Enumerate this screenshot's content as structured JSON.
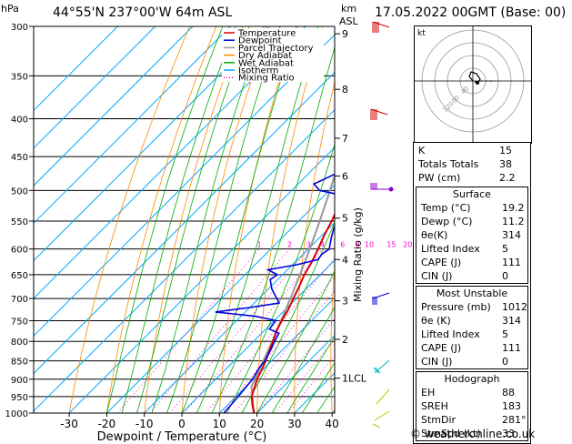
{
  "header": {
    "location": "44°55'N 237°00'W 64m ASL",
    "date": "17.05.2022 00GMT (Base: 00)",
    "left_unit": "hPa",
    "right_unit_top": "km",
    "right_unit_bottom": "ASL"
  },
  "chart_data": {
    "type": "line",
    "title": "44°55'N 237°00'W 64m ASL",
    "xlabel": "Dewpoint / Temperature (°C)",
    "ylabel": "hPa",
    "y2label": "Mixing Ratio (g/kg)",
    "xlim": [
      -35,
      40
    ],
    "ylim": [
      1000,
      300
    ],
    "y_scale": "log",
    "x_ticks": [
      -30,
      -20,
      -10,
      0,
      10,
      20,
      30,
      40
    ],
    "pressure_ticks": [
      300,
      350,
      400,
      450,
      500,
      550,
      600,
      650,
      700,
      750,
      800,
      850,
      900,
      950,
      1000
    ],
    "km_ticks": [
      {
        "label": "9",
        "p": 307
      },
      {
        "label": "8",
        "p": 365
      },
      {
        "label": "7",
        "p": 425
      },
      {
        "label": "6",
        "p": 478
      },
      {
        "label": "5",
        "p": 545
      },
      {
        "label": "4",
        "p": 620
      },
      {
        "label": "3",
        "p": 705
      },
      {
        "label": "2",
        "p": 795
      },
      {
        "label": "1LCL",
        "p": 897
      }
    ],
    "mixing_ratio_labels": [
      "1",
      "2",
      "3",
      "4",
      "6",
      "8",
      "10",
      "15",
      "20",
      "25"
    ],
    "mixing_ratio_values": [
      1,
      2,
      3,
      4,
      6,
      8,
      10,
      15,
      20,
      25
    ],
    "grid": true,
    "legend_position": "top-right",
    "legend": [
      {
        "name": "Temperature",
        "color": "#dd0000",
        "style": "solid"
      },
      {
        "name": "Dewpoint",
        "color": "#0000dd",
        "style": "solid"
      },
      {
        "name": "Parcel Trajectory",
        "color": "#999999",
        "style": "solid"
      },
      {
        "name": "Dry Adiabat",
        "color": "#ff8800",
        "style": "solid"
      },
      {
        "name": "Wet Adiabat",
        "color": "#00aa00",
        "style": "solid"
      },
      {
        "name": "Isotherm",
        "color": "#00aaff",
        "style": "solid"
      },
      {
        "name": "Mixing Ratio",
        "color": "#ff00cc",
        "style": "dotted"
      }
    ],
    "series": [
      {
        "name": "Temperature",
        "color": "#dd0000",
        "points": [
          [
            1000,
            19.2
          ],
          [
            975,
            16.6
          ],
          [
            950,
            14.2
          ],
          [
            925,
            12.6
          ],
          [
            900,
            11.0
          ],
          [
            875,
            9.8
          ],
          [
            850,
            8.4
          ],
          [
            825,
            6.8
          ],
          [
            800,
            5.2
          ],
          [
            775,
            3.4
          ],
          [
            750,
            2.0
          ],
          [
            725,
            0.8
          ],
          [
            700,
            -0.8
          ],
          [
            675,
            -2.4
          ],
          [
            650,
            -4.2
          ],
          [
            625,
            -5.6
          ],
          [
            600,
            -7.4
          ],
          [
            575,
            -9.4
          ],
          [
            550,
            -11.2
          ],
          [
            525,
            -13.4
          ],
          [
            500,
            -15.2
          ],
          [
            475,
            -18.4
          ],
          [
            450,
            -21.0
          ],
          [
            425,
            -24.0
          ],
          [
            400,
            -27.0
          ],
          [
            375,
            -30.4
          ],
          [
            350,
            -33.4
          ],
          [
            325,
            -37.6
          ],
          [
            300,
            -41.2
          ]
        ]
      },
      {
        "name": "Dewpoint",
        "color": "#0000dd",
        "points": [
          [
            1000,
            11.2
          ],
          [
            950,
            10.6
          ],
          [
            900,
            9.8
          ],
          [
            870,
            8.6
          ],
          [
            850,
            8.2
          ],
          [
            820,
            6.8
          ],
          [
            800,
            5.6
          ],
          [
            780,
            4.6
          ],
          [
            770,
            1.0
          ],
          [
            750,
            0.4
          ],
          [
            740,
            -6.0
          ],
          [
            730,
            -18.0
          ],
          [
            720,
            -10.0
          ],
          [
            710,
            -3.4
          ],
          [
            700,
            -5.2
          ],
          [
            680,
            -9.0
          ],
          [
            660,
            -12.0
          ],
          [
            650,
            -11.4
          ],
          [
            640,
            -15.2
          ],
          [
            630,
            -8.8
          ],
          [
            620,
            -4.6
          ],
          [
            610,
            -5.0
          ],
          [
            600,
            -4.4
          ],
          [
            580,
            -6.8
          ],
          [
            560,
            -9.0
          ],
          [
            545,
            -10.0
          ],
          [
            535,
            -12.6
          ],
          [
            520,
            -12.0
          ],
          [
            510,
            -13.0
          ],
          [
            500,
            -22.6
          ],
          [
            490,
            -25.8
          ],
          [
            475,
            -22.8
          ],
          [
            460,
            -23.0
          ],
          [
            450,
            -22.4
          ],
          [
            425,
            -25.6
          ],
          [
            405,
            -28.8
          ],
          [
            400,
            -30.6
          ],
          [
            380,
            -33.4
          ],
          [
            360,
            -37.4
          ],
          [
            345,
            -40.4
          ],
          [
            330,
            -39.6
          ],
          [
            315,
            -40.6
          ],
          [
            300,
            -41.8
          ]
        ]
      },
      {
        "name": "Parcel Trajectory",
        "color": "#999999",
        "points": [
          [
            1000,
            19.2
          ],
          [
            950,
            14.4
          ],
          [
            920,
            11.4
          ],
          [
            897,
            10.3
          ],
          [
            850,
            7.8
          ],
          [
            800,
            5.0
          ],
          [
            750,
            1.8
          ],
          [
            700,
            -1.6
          ],
          [
            650,
            -5.4
          ],
          [
            600,
            -9.6
          ],
          [
            550,
            -14.4
          ],
          [
            500,
            -19.8
          ],
          [
            450,
            -26.0
          ],
          [
            400,
            -33.0
          ],
          [
            350,
            -41.2
          ],
          [
            300,
            -50.6
          ]
        ]
      }
    ]
  },
  "hodograph": {
    "label": "kt",
    "ring_labels": [
      "40",
      "80",
      "120"
    ]
  },
  "indices": {
    "rows": [
      {
        "label": "K",
        "value": "15"
      },
      {
        "label": "Totals Totals",
        "value": "38"
      },
      {
        "label": "PW (cm)",
        "value": "2.2"
      }
    ]
  },
  "surface": {
    "title": "Surface",
    "rows": [
      {
        "label": "Temp (°C)",
        "value": "19.2"
      },
      {
        "label": "Dewp (°C)",
        "value": "11.2"
      },
      {
        "label": "θe(K)",
        "value": "314"
      },
      {
        "label": "Lifted Index",
        "value": "5"
      },
      {
        "label": "CAPE (J)",
        "value": "111"
      },
      {
        "label": "CIN (J)",
        "value": "0"
      }
    ]
  },
  "most_unstable": {
    "title": "Most Unstable",
    "rows": [
      {
        "label": "Pressure (mb)",
        "value": "1012"
      },
      {
        "label": "θe (K)",
        "value": "314"
      },
      {
        "label": "Lifted Index",
        "value": "5"
      },
      {
        "label": "CAPE (J)",
        "value": "111"
      },
      {
        "label": "CIN (J)",
        "value": "0"
      }
    ]
  },
  "hodograph_table": {
    "title": "Hodograph",
    "rows": [
      {
        "label": "EH",
        "value": "88"
      },
      {
        "label": "SREH",
        "value": "183"
      },
      {
        "label": "StmDir",
        "value": "281°"
      },
      {
        "label": "StmSpd (kt)",
        "value": "33"
      }
    ]
  },
  "footer": {
    "copyright": "© weatheronline.co.uk"
  },
  "colors": {
    "temperature": "#dd0000",
    "dewpoint": "#0000dd",
    "parcel": "#999999",
    "dry_adiabat": "#ff8800",
    "wet_adiabat": "#00aa00",
    "isotherm": "#00aaff",
    "mixing_ratio": "#ff00cc"
  }
}
